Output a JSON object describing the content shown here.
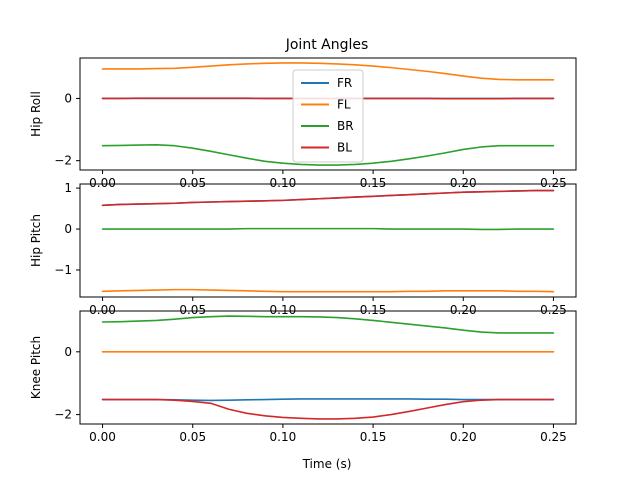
{
  "chart_data": {
    "type": "line",
    "title": "Joint Angles",
    "xlabel": "Time (s)",
    "legend": {
      "placement": "upper-center-of-top-panel",
      "entries": [
        "FR",
        "FL",
        "BR",
        "BL"
      ]
    },
    "colors": {
      "FR": "#1f77b4",
      "FL": "#ff7f0e",
      "BR": "#2ca02c",
      "BL": "#d62728"
    },
    "x": [
      0.0,
      0.01,
      0.02,
      0.03,
      0.04,
      0.05,
      0.06,
      0.07,
      0.08,
      0.09,
      0.1,
      0.11,
      0.12,
      0.13,
      0.14,
      0.15,
      0.16,
      0.17,
      0.18,
      0.19,
      0.2,
      0.21,
      0.22,
      0.23,
      0.24,
      0.25
    ],
    "xlim": [
      -0.0125,
      0.2625
    ],
    "xticks": [
      "0.00",
      "0.05",
      "0.10",
      "0.15",
      "0.20",
      "0.25"
    ],
    "panels": [
      {
        "ylabel": "Hip Roll",
        "ylim": [
          -2.3,
          1.3
        ],
        "yticks": [
          0,
          -2
        ],
        "ytick_labels": [
          "0",
          "−2"
        ],
        "series": [
          {
            "name": "FR",
            "values": [
              0.0,
              0.0,
              0.0,
              0.0,
              0.0,
              0.0,
              0.0,
              0.0,
              0.0,
              0.0,
              0.0,
              0.0,
              0.0,
              0.0,
              0.0,
              0.0,
              0.0,
              0.0,
              0.0,
              0.0,
              0.0,
              0.0,
              0.0,
              0.0,
              0.0,
              0.0
            ]
          },
          {
            "name": "FL",
            "values": [
              0.95,
              0.95,
              0.95,
              0.96,
              0.97,
              1.0,
              1.04,
              1.08,
              1.11,
              1.13,
              1.14,
              1.14,
              1.13,
              1.11,
              1.08,
              1.04,
              0.99,
              0.93,
              0.87,
              0.8,
              0.72,
              0.65,
              0.61,
              0.6,
              0.6,
              0.6
            ]
          },
          {
            "name": "BR",
            "values": [
              -1.52,
              -1.51,
              -1.5,
              -1.49,
              -1.52,
              -1.6,
              -1.7,
              -1.81,
              -1.92,
              -2.02,
              -2.08,
              -2.12,
              -2.14,
              -2.14,
              -2.12,
              -2.08,
              -2.02,
              -1.94,
              -1.85,
              -1.75,
              -1.64,
              -1.56,
              -1.52,
              -1.52,
              -1.52,
              -1.52
            ]
          },
          {
            "name": "BL",
            "values": [
              0.0,
              0.0,
              0.01,
              0.01,
              0.01,
              0.01,
              0.01,
              0.01,
              0.01,
              0.0,
              0.0,
              0.0,
              0.0,
              0.0,
              0.0,
              0.0,
              0.0,
              0.0,
              0.0,
              -0.01,
              -0.01,
              -0.01,
              -0.01,
              0.0,
              0.0,
              0.0
            ]
          }
        ]
      },
      {
        "ylabel": "Hip Pitch",
        "ylim": [
          -1.66,
          1.1
        ],
        "yticks": [
          1,
          0,
          -1
        ],
        "ytick_labels": [
          "1",
          "0",
          "−1"
        ],
        "series": [
          {
            "name": "FR",
            "values": [
              0.58,
              0.6,
              0.61,
              0.62,
              0.63,
              0.65,
              0.66,
              0.67,
              0.68,
              0.69,
              0.7,
              0.72,
              0.74,
              0.76,
              0.78,
              0.8,
              0.82,
              0.84,
              0.86,
              0.88,
              0.9,
              0.91,
              0.92,
              0.93,
              0.94,
              0.94
            ]
          },
          {
            "name": "FL",
            "values": [
              -1.52,
              -1.51,
              -1.5,
              -1.49,
              -1.48,
              -1.48,
              -1.49,
              -1.5,
              -1.51,
              -1.52,
              -1.53,
              -1.53,
              -1.53,
              -1.53,
              -1.53,
              -1.53,
              -1.53,
              -1.52,
              -1.52,
              -1.51,
              -1.51,
              -1.51,
              -1.51,
              -1.52,
              -1.52,
              -1.53
            ]
          },
          {
            "name": "BR",
            "values": [
              0.0,
              0.0,
              0.0,
              0.0,
              0.0,
              0.0,
              0.0,
              0.0,
              0.01,
              0.01,
              0.01,
              0.01,
              0.01,
              0.01,
              0.01,
              0.01,
              0.0,
              0.0,
              0.0,
              0.0,
              0.0,
              -0.01,
              -0.01,
              0.0,
              0.0,
              0.0
            ]
          },
          {
            "name": "BL",
            "values": [
              0.58,
              0.6,
              0.61,
              0.62,
              0.63,
              0.65,
              0.66,
              0.67,
              0.68,
              0.69,
              0.7,
              0.72,
              0.74,
              0.76,
              0.78,
              0.8,
              0.82,
              0.84,
              0.86,
              0.88,
              0.9,
              0.91,
              0.92,
              0.93,
              0.94,
              0.94
            ]
          }
        ]
      },
      {
        "ylabel": "Knee Pitch",
        "ylim": [
          -2.3,
          1.3
        ],
        "yticks": [
          0,
          -2
        ],
        "ytick_labels": [
          "0",
          "−2"
        ],
        "series": [
          {
            "name": "FR",
            "values": [
              -1.52,
              -1.52,
              -1.52,
              -1.52,
              -1.53,
              -1.54,
              -1.55,
              -1.54,
              -1.53,
              -1.52,
              -1.51,
              -1.5,
              -1.5,
              -1.5,
              -1.5,
              -1.5,
              -1.5,
              -1.5,
              -1.51,
              -1.51,
              -1.52,
              -1.52,
              -1.52,
              -1.52,
              -1.52,
              -1.52
            ]
          },
          {
            "name": "FL",
            "values": [
              0.0,
              0.0,
              0.0,
              0.0,
              0.0,
              0.0,
              0.0,
              0.0,
              0.0,
              0.0,
              0.0,
              0.0,
              0.0,
              0.0,
              0.0,
              0.0,
              0.0,
              0.0,
              0.0,
              0.0,
              0.0,
              0.0,
              0.0,
              0.0,
              0.0,
              0.0
            ]
          },
          {
            "name": "BR",
            "values": [
              0.95,
              0.96,
              0.98,
              1.0,
              1.04,
              1.09,
              1.12,
              1.14,
              1.13,
              1.12,
              1.12,
              1.12,
              1.11,
              1.09,
              1.05,
              1.0,
              0.94,
              0.88,
              0.82,
              0.76,
              0.69,
              0.63,
              0.6,
              0.6,
              0.6,
              0.6
            ]
          },
          {
            "name": "BL",
            "values": [
              -1.52,
              -1.52,
              -1.52,
              -1.52,
              -1.54,
              -1.58,
              -1.64,
              -1.83,
              -1.96,
              -2.04,
              -2.09,
              -2.12,
              -2.14,
              -2.14,
              -2.12,
              -2.08,
              -2.0,
              -1.9,
              -1.79,
              -1.68,
              -1.59,
              -1.54,
              -1.52,
              -1.52,
              -1.52,
              -1.52
            ]
          }
        ]
      }
    ]
  }
}
